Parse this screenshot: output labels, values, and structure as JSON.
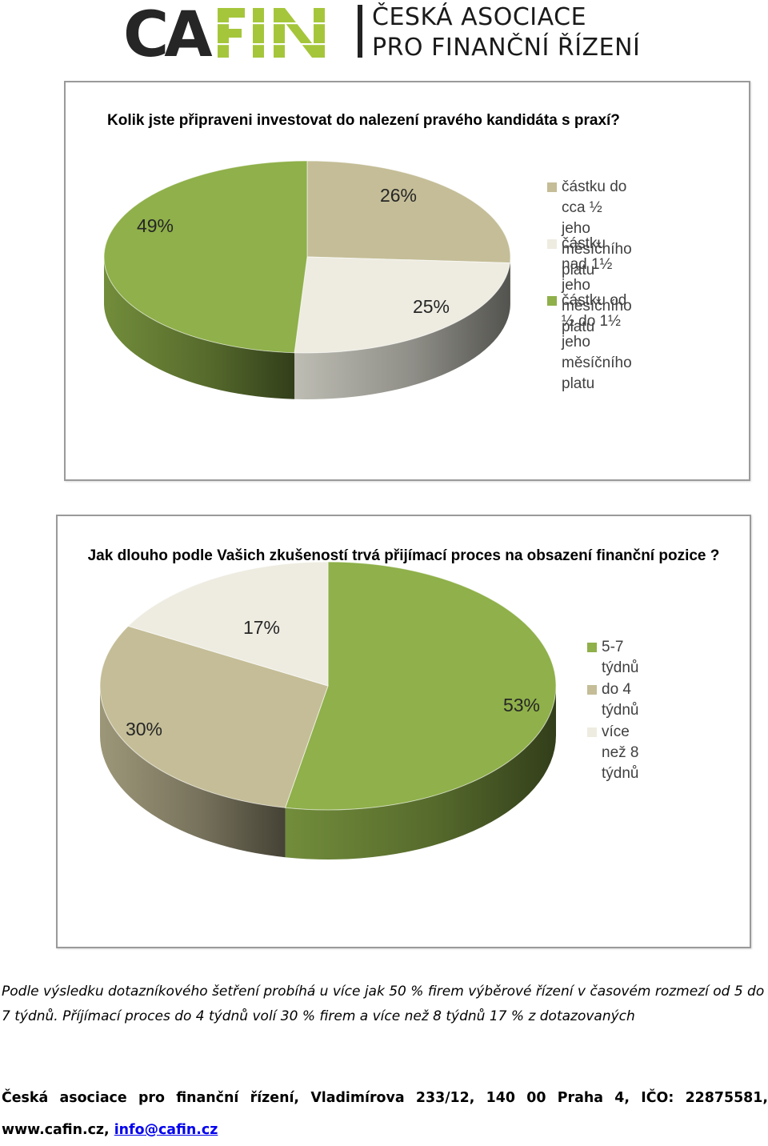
{
  "header": {
    "logo_text": "CAFIN",
    "org_line1": "ČESKÁ ASOCIACE",
    "org_line2": "PRO FINANČNÍ ŘÍZENÍ",
    "colors": {
      "logo_dark": "#262626",
      "logo_green": "#a5c63b"
    }
  },
  "chart_data": [
    {
      "type": "pie",
      "style": "3d",
      "title": "Kolik jste připraveni investovat do nalezení pravého kandidáta s praxí?",
      "slices": [
        {
          "label": "částku do cca ½ jeho\nměsíčního platu",
          "value": 26,
          "data_label": "26%",
          "color": "#c4bd97"
        },
        {
          "label": "částku nad 1½  jeho\nměsíčního platu",
          "value": 25,
          "data_label": "25%",
          "color": "#eeece1"
        },
        {
          "label": "částku od ½  do 1½  jeho\nměsíčního platu",
          "value": 49,
          "data_label": "49%",
          "color": "#8fb04a"
        }
      ],
      "legend_position": "right"
    },
    {
      "type": "pie",
      "style": "3d",
      "title": "Jak dlouho podle Vašich zkušeností trvá přijímací proces na obsazení finanční pozice ?",
      "slices": [
        {
          "label": "5-7 týdnů",
          "value": 53,
          "data_label": "53%",
          "color": "#8fb04a"
        },
        {
          "label": "do 4 týdnů",
          "value": 30,
          "data_label": "30%",
          "color": "#c4bd97"
        },
        {
          "label": "více než 8 týdnů",
          "value": 17,
          "data_label": "17%",
          "color": "#eeece1"
        }
      ],
      "legend_position": "right"
    }
  ],
  "summary": {
    "text": "Podle výsledku dotazníkového šetření probíhá u více jak 50 % firem výběrové řízení v časovém rozmezí od 5 do 7 týdnů.  Příjímací proces do 4 týdnů volí 30 % firem a více než 8 týdnů 17 % z dotazovaných"
  },
  "footer": {
    "text": "Česká asociace pro finanční řízení, Vladimírova 233/12, 140 00 Praha 4, IČO: 22875581, www.cafin.cz,",
    "email": "info@cafin.cz"
  }
}
